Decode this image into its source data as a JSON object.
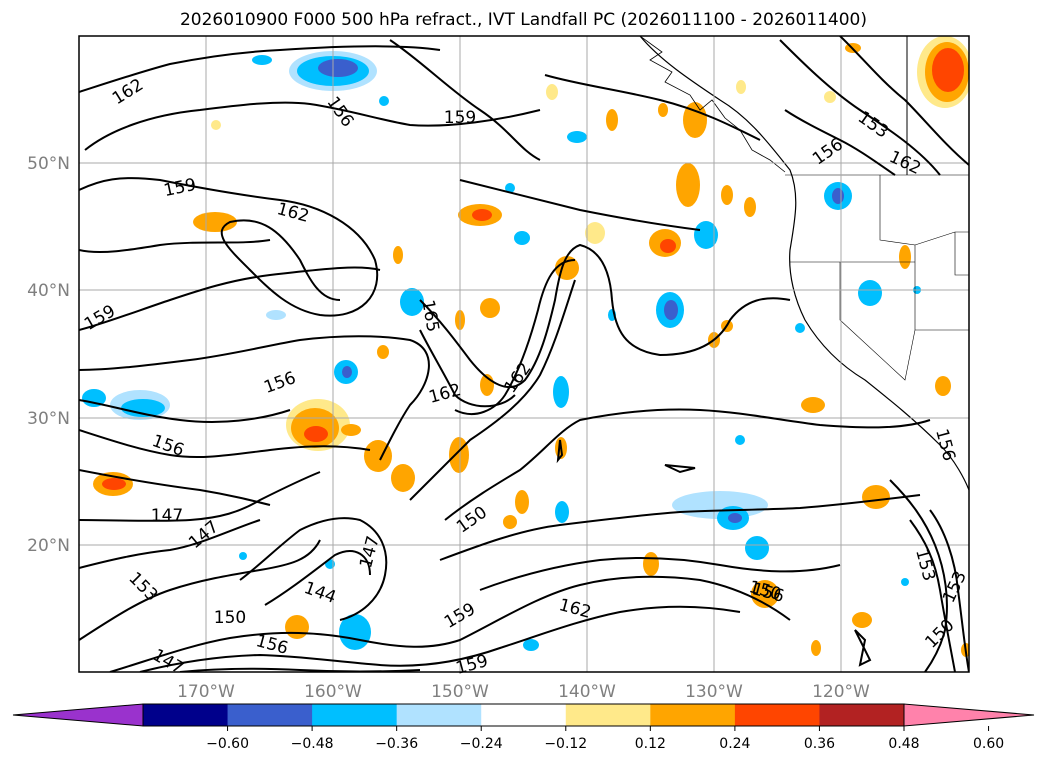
{
  "title": "2026010900 F000 500 hPa refract., IVT Landfall PC (2026011100 - 2026011400)",
  "colors": {
    "background": "#ffffff",
    "grid": "#a9a9a9",
    "contour": "#000000",
    "axis_label": "#7f7f7f"
  },
  "map": {
    "lat_labels": [
      "50°N",
      "40°N",
      "30°N",
      "20°N"
    ],
    "lon_labels": [
      "170°W",
      "160°W",
      "150°W",
      "140°W",
      "130°W",
      "120°W"
    ],
    "contour_labels": [
      "162",
      "159",
      "156",
      "162",
      "159",
      "156",
      "165",
      "162",
      "162",
      "159",
      "153",
      "156",
      "162",
      "156",
      "147",
      "147",
      "147",
      "150",
      "153",
      "144",
      "150",
      "156",
      "159",
      "159",
      "162",
      "156",
      "153",
      "156",
      "153",
      "150",
      "147",
      "150"
    ]
  },
  "colorbar": {
    "colors": [
      "#9a32cd",
      "#00008b",
      "#3a5fcd",
      "#00bfff",
      "#b0e2ff",
      "#ffffff",
      "#ffe98a",
      "#ffa500",
      "#ff4500",
      "#b22222",
      "#ff82ab"
    ],
    "ticks": [
      "−0.60",
      "−0.48",
      "−0.36",
      "−0.24",
      "−0.12",
      "0.12",
      "0.24",
      "0.36",
      "0.48",
      "0.60"
    ]
  }
}
